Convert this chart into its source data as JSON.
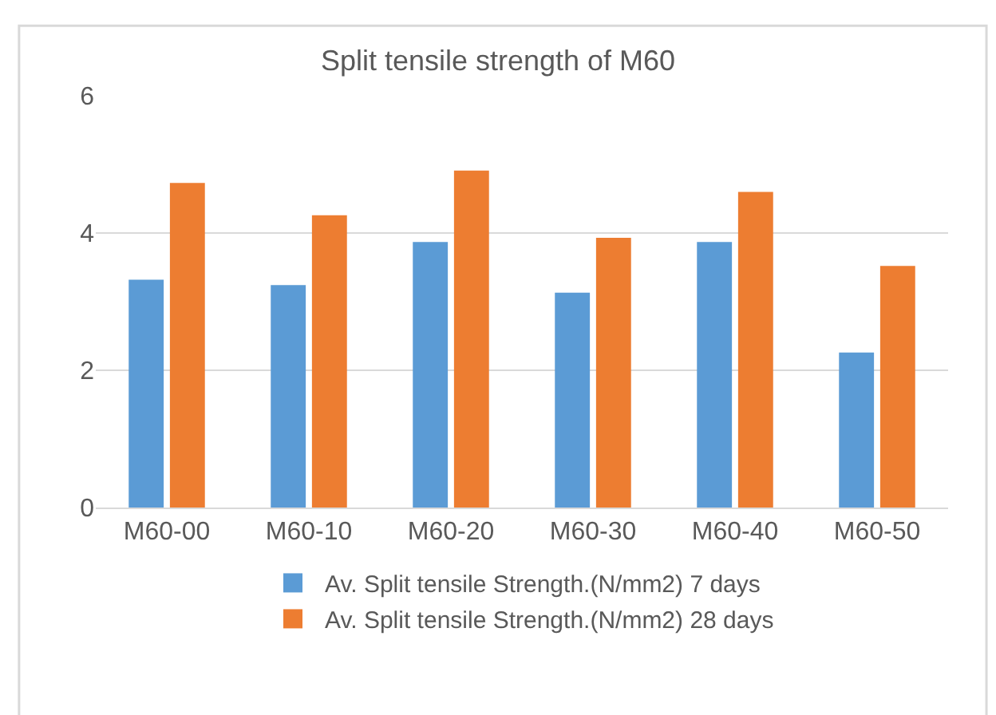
{
  "chart_data": {
    "type": "bar",
    "title": "Split tensile strength of M60",
    "categories": [
      "M60-00",
      "M60-10",
      "M60-20",
      "M60-30",
      "M60-40",
      "M60-50"
    ],
    "series": [
      {
        "name": "Av. Split tensile Strength.(N/mm2) 7 days",
        "color": "#5b9bd5",
        "values": [
          3.32,
          3.24,
          3.87,
          3.13,
          3.87,
          2.26
        ]
      },
      {
        "name": "Av. Split tensile Strength.(N/mm2) 28 days",
        "color": "#ed7d31",
        "values": [
          4.73,
          4.26,
          4.91,
          3.93,
          4.6,
          3.52
        ]
      }
    ],
    "ylim": [
      0,
      6
    ],
    "yticks": [
      0,
      2,
      4,
      6
    ],
    "grid": "y",
    "legend": "bottom"
  }
}
